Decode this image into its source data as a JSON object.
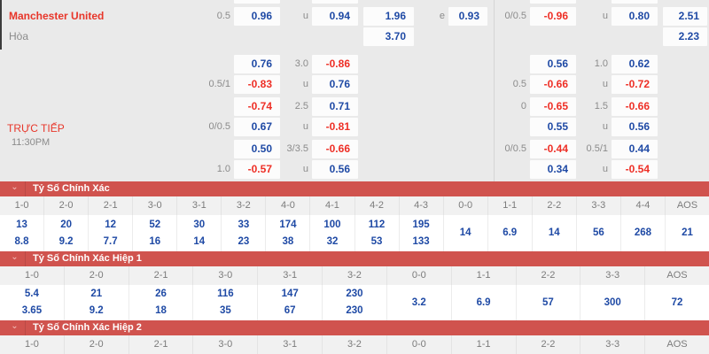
{
  "colors": {
    "background": "#eaeaea",
    "section_bar_red": "#d0534e",
    "odds_blue": "#1f4aa5",
    "odds_red": "#ee2f26",
    "label_gray": "#8b8b8b",
    "team_red": "#e8362a"
  },
  "match": {
    "home_team": "Manchester United",
    "draw_label": "Hòa",
    "live_label": "TRỰC TIẾP",
    "time": "11:30PM"
  },
  "odds": {
    "rows": [
      {
        "cells": [
          {
            "slot": "la",
            "text": "0.5"
          },
          {
            "slot": "ca",
            "text": "0.96",
            "tone": "blue"
          },
          {
            "slot": "lb",
            "text": "u"
          },
          {
            "slot": "cb",
            "text": "0.94",
            "tone": "blue"
          },
          {
            "slot": "cc",
            "text": "1.96",
            "tone": "blue"
          },
          {
            "slot": "ld",
            "text": "e"
          },
          {
            "slot": "cd",
            "text": "0.93",
            "tone": "blue"
          },
          {
            "slot": "le",
            "text": "0/0.5"
          },
          {
            "slot": "ce",
            "text": "-0.96",
            "tone": "red"
          },
          {
            "slot": "lf",
            "text": "u"
          },
          {
            "slot": "cf",
            "text": "0.80",
            "tone": "blue"
          },
          {
            "slot": "cg",
            "text": "2.51",
            "tone": "blue"
          }
        ]
      },
      {
        "cells": [
          {
            "slot": "cc",
            "text": "3.70",
            "tone": "blue"
          },
          {
            "slot": "cg",
            "text": "2.23",
            "tone": "blue"
          }
        ]
      },
      {
        "cells": [
          {
            "slot": "ca",
            "text": "0.76",
            "tone": "blue"
          },
          {
            "slot": "lb",
            "text": "3.0"
          },
          {
            "slot": "cb",
            "text": "-0.86",
            "tone": "red"
          },
          {
            "slot": "ce",
            "text": "0.56",
            "tone": "blue"
          },
          {
            "slot": "lf",
            "text": "1.0"
          },
          {
            "slot": "cf",
            "text": "0.62",
            "tone": "blue"
          }
        ]
      },
      {
        "cells": [
          {
            "slot": "la",
            "text": "0.5/1"
          },
          {
            "slot": "ca",
            "text": "-0.83",
            "tone": "red"
          },
          {
            "slot": "lb",
            "text": "u"
          },
          {
            "slot": "cb",
            "text": "0.76",
            "tone": "blue"
          },
          {
            "slot": "le",
            "text": "0.5"
          },
          {
            "slot": "ce",
            "text": "-0.66",
            "tone": "red"
          },
          {
            "slot": "lf",
            "text": "u"
          },
          {
            "slot": "cf",
            "text": "-0.72",
            "tone": "red"
          }
        ]
      },
      {
        "cells": [
          {
            "slot": "ca",
            "text": "-0.74",
            "tone": "red"
          },
          {
            "slot": "lb",
            "text": "2.5"
          },
          {
            "slot": "cb",
            "text": "0.71",
            "tone": "blue"
          },
          {
            "slot": "le",
            "text": "0"
          },
          {
            "slot": "ce",
            "text": "-0.65",
            "tone": "red"
          },
          {
            "slot": "lf",
            "text": "1.5"
          },
          {
            "slot": "cf",
            "text": "-0.66",
            "tone": "red"
          }
        ]
      },
      {
        "cells": [
          {
            "slot": "la",
            "text": "0/0.5"
          },
          {
            "slot": "ca",
            "text": "0.67",
            "tone": "blue"
          },
          {
            "slot": "lb",
            "text": "u"
          },
          {
            "slot": "cb",
            "text": "-0.81",
            "tone": "red"
          },
          {
            "slot": "ce",
            "text": "0.55",
            "tone": "blue"
          },
          {
            "slot": "lf",
            "text": "u"
          },
          {
            "slot": "cf",
            "text": "0.56",
            "tone": "blue"
          }
        ]
      },
      {
        "cells": [
          {
            "slot": "ca",
            "text": "0.50",
            "tone": "blue"
          },
          {
            "slot": "lb",
            "text": "3/3.5"
          },
          {
            "slot": "cb",
            "text": "-0.66",
            "tone": "red"
          },
          {
            "slot": "le",
            "text": "0/0.5"
          },
          {
            "slot": "ce",
            "text": "-0.44",
            "tone": "red"
          },
          {
            "slot": "lf",
            "text": "0.5/1"
          },
          {
            "slot": "cf",
            "text": "0.44",
            "tone": "blue"
          }
        ]
      },
      {
        "cells": [
          {
            "slot": "la",
            "text": "1.0"
          },
          {
            "slot": "ca",
            "text": "-0.57",
            "tone": "red"
          },
          {
            "slot": "lb",
            "text": "u"
          },
          {
            "slot": "cb",
            "text": "0.56",
            "tone": "blue"
          },
          {
            "slot": "ce",
            "text": "0.34",
            "tone": "blue"
          },
          {
            "slot": "lf",
            "text": "u"
          },
          {
            "slot": "cf",
            "text": "-0.54",
            "tone": "red"
          }
        ]
      }
    ]
  },
  "score_sections": [
    {
      "title": "Tỷ Số Chính Xác",
      "icon": "chevron-down",
      "chevron_glyph": "⌄",
      "columns": [
        {
          "header": "1-0",
          "values": [
            "13",
            "8.8"
          ]
        },
        {
          "header": "2-0",
          "values": [
            "20",
            "9.2"
          ]
        },
        {
          "header": "2-1",
          "values": [
            "12",
            "7.7"
          ]
        },
        {
          "header": "3-0",
          "values": [
            "52",
            "16"
          ]
        },
        {
          "header": "3-1",
          "values": [
            "30",
            "14"
          ]
        },
        {
          "header": "3-2",
          "values": [
            "33",
            "23"
          ]
        },
        {
          "header": "4-0",
          "values": [
            "174",
            "38"
          ]
        },
        {
          "header": "4-1",
          "values": [
            "100",
            "32"
          ]
        },
        {
          "header": "4-2",
          "values": [
            "112",
            "53"
          ]
        },
        {
          "header": "4-3",
          "values": [
            "195",
            "133"
          ]
        },
        {
          "header": "0-0",
          "values": [
            "14"
          ]
        },
        {
          "header": "1-1",
          "values": [
            "6.9"
          ]
        },
        {
          "header": "2-2",
          "values": [
            "14"
          ]
        },
        {
          "header": "3-3",
          "values": [
            "56"
          ]
        },
        {
          "header": "4-4",
          "values": [
            "268"
          ]
        },
        {
          "header": "AOS",
          "values": [
            "21"
          ]
        }
      ]
    },
    {
      "title": "Tỷ Số Chính Xác Hiệp 1",
      "icon": "chevron-down",
      "chevron_glyph": "⌄",
      "columns": [
        {
          "header": "1-0",
          "values": [
            "5.4",
            "3.65"
          ]
        },
        {
          "header": "2-0",
          "values": [
            "21",
            "9.2"
          ]
        },
        {
          "header": "2-1",
          "values": [
            "26",
            "18"
          ]
        },
        {
          "header": "3-0",
          "values": [
            "116",
            "35"
          ]
        },
        {
          "header": "3-1",
          "values": [
            "147",
            "67"
          ]
        },
        {
          "header": "3-2",
          "values": [
            "230",
            "230"
          ]
        },
        {
          "header": "0-0",
          "values": [
            "3.2"
          ]
        },
        {
          "header": "1-1",
          "values": [
            "6.9"
          ]
        },
        {
          "header": "2-2",
          "values": [
            "57"
          ]
        },
        {
          "header": "3-3",
          "values": [
            "300"
          ]
        },
        {
          "header": "AOS",
          "values": [
            "72"
          ]
        }
      ]
    },
    {
      "title": "Tỷ Số Chính Xác Hiệp 2",
      "icon": "chevron-down",
      "chevron_glyph": "⌄",
      "columns": [
        {
          "header": "1-0",
          "values": []
        },
        {
          "header": "2-0",
          "values": []
        },
        {
          "header": "2-1",
          "values": []
        },
        {
          "header": "3-0",
          "values": []
        },
        {
          "header": "3-1",
          "values": []
        },
        {
          "header": "3-2",
          "values": []
        },
        {
          "header": "0-0",
          "values": []
        },
        {
          "header": "1-1",
          "values": []
        },
        {
          "header": "2-2",
          "values": []
        },
        {
          "header": "3-3",
          "values": []
        },
        {
          "header": "AOS",
          "values": []
        }
      ]
    }
  ]
}
